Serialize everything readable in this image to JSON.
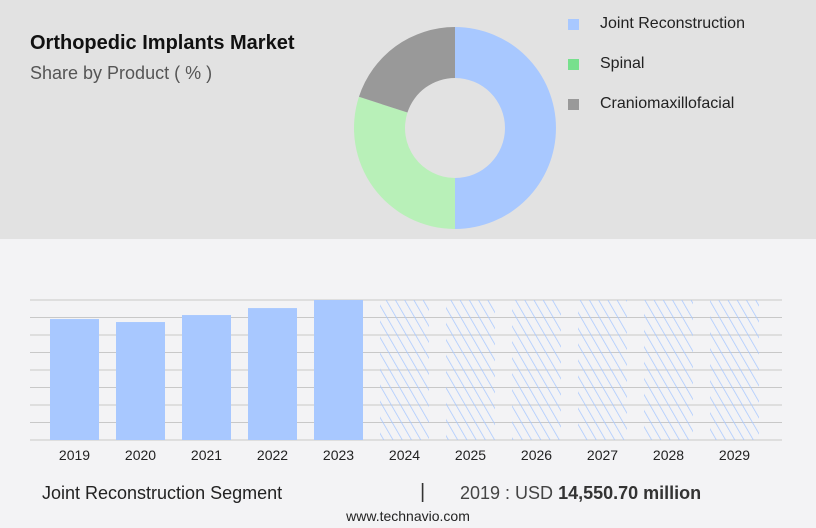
{
  "chart_data": [
    {
      "type": "pie",
      "title": "Orthopedic Implants Market",
      "subtitle": "Share by Product ( % )",
      "donut": true,
      "legend_position": "right",
      "slices": [
        {
          "name": "Joint Reconstruction",
          "value": 50,
          "color": "#a8c8ff"
        },
        {
          "name": "Spinal",
          "value": 30,
          "color": "#b8f0b8"
        },
        {
          "name": "Craniomaxillofacial",
          "value": 20,
          "color": "#999999"
        }
      ],
      "legend_colors": [
        "#a8c8ff",
        "#77e08d",
        "#999999"
      ]
    },
    {
      "type": "bar",
      "categories": [
        "2019",
        "2020",
        "2021",
        "2022",
        "2023",
        "2024",
        "2025",
        "2026",
        "2027",
        "2028",
        "2029"
      ],
      "values": [
        14550.7,
        14190,
        15030,
        15870,
        16840,
        16840,
        16840,
        16840,
        16840,
        16840,
        16840
      ],
      "forecast_from": "2024",
      "ylim": [
        0,
        16840
      ],
      "grid": true,
      "color": "#a8c8ff",
      "xlabel": "",
      "ylabel": ""
    }
  ],
  "footer": {
    "segment": "Joint Reconstruction Segment",
    "separator": "|",
    "value_prefix": "2019 : USD ",
    "value_bold": "14,550.70 million",
    "url": "www.technavio.com"
  }
}
